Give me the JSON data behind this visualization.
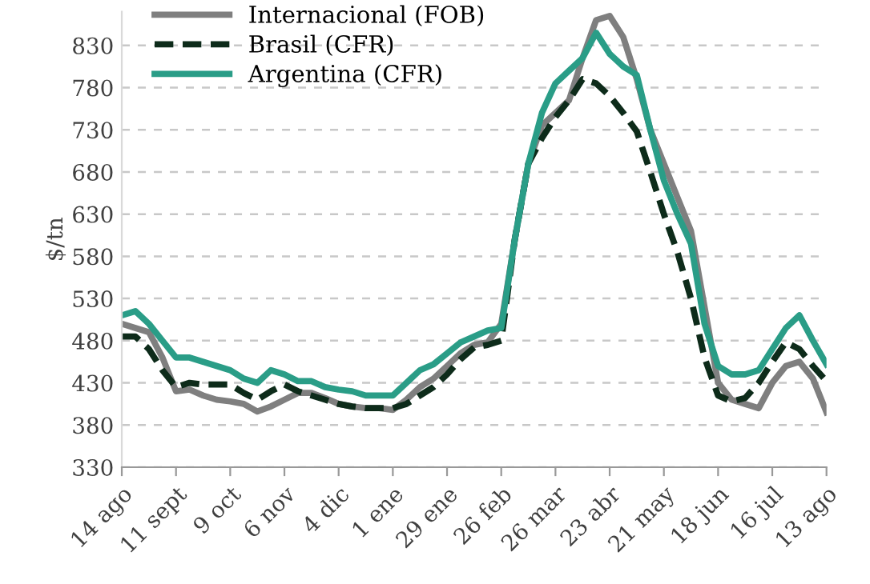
{
  "chart_data": {
    "type": "line",
    "ylabel": "$/tn",
    "categories": [
      "14 ago",
      null,
      null,
      null,
      "11 sept",
      null,
      null,
      null,
      "9 oct",
      null,
      null,
      null,
      "6 nov",
      null,
      null,
      null,
      "4 dic",
      null,
      null,
      null,
      "1 ene",
      null,
      null,
      null,
      "29 ene",
      null,
      null,
      null,
      "26 feb",
      null,
      null,
      null,
      "26 mar",
      null,
      null,
      null,
      "23 abr",
      null,
      null,
      null,
      "21 may",
      null,
      null,
      null,
      "18 jun",
      null,
      null,
      null,
      "16 jul",
      null,
      null,
      null,
      "13 ago"
    ],
    "ylim": [
      330,
      870
    ],
    "yticks": [
      330,
      380,
      430,
      480,
      530,
      580,
      630,
      680,
      730,
      780,
      830
    ],
    "grid": "y",
    "legend": "top left",
    "series": [
      {
        "name": "Internacional (FOB)",
        "color": "#7f7f7f",
        "line_style": "solid",
        "values": [
          500,
          495,
          490,
          460,
          420,
          422,
          415,
          410,
          408,
          405,
          396,
          402,
          410,
          418,
          418,
          412,
          405,
          402,
          400,
          400,
          398,
          410,
          425,
          435,
          450,
          465,
          475,
          478,
          500,
          600,
          690,
          735,
          750,
          765,
          815,
          860,
          865,
          840,
          790,
          730,
          690,
          650,
          610,
          520,
          430,
          410,
          405,
          400,
          430,
          450,
          455,
          435,
          395
        ]
      },
      {
        "name": "Brasil (CFR)",
        "color": "#0d2b1a",
        "line_style": "dashed",
        "values": [
          485,
          485,
          470,
          445,
          425,
          430,
          428,
          428,
          428,
          418,
          410,
          420,
          428,
          420,
          415,
          410,
          405,
          402,
          400,
          400,
          400,
          405,
          415,
          425,
          440,
          458,
          472,
          475,
          480,
          600,
          690,
          720,
          745,
          765,
          790,
          785,
          770,
          750,
          728,
          680,
          630,
          585,
          530,
          460,
          415,
          408,
          412,
          430,
          455,
          478,
          470,
          450,
          432
        ]
      },
      {
        "name": "Argentina (CFR)",
        "color": "#2a9d87",
        "line_style": "solid",
        "values": [
          510,
          515,
          500,
          480,
          460,
          460,
          455,
          450,
          445,
          435,
          430,
          445,
          440,
          432,
          432,
          425,
          422,
          420,
          415,
          415,
          415,
          430,
          445,
          452,
          465,
          478,
          485,
          492,
          495,
          600,
          690,
          750,
          785,
          800,
          815,
          845,
          820,
          805,
          795,
          730,
          670,
          630,
          595,
          500,
          450,
          440,
          440,
          445,
          470,
          495,
          510,
          480,
          452
        ]
      }
    ]
  }
}
